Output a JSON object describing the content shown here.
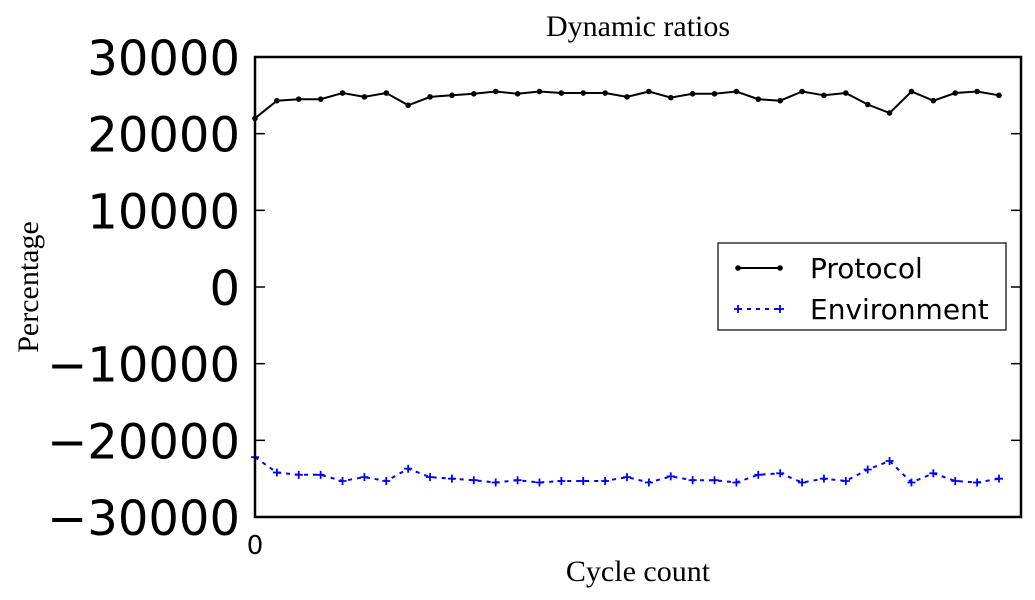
{
  "chart_data": {
    "type": "line",
    "title": "Dynamic ratios",
    "xlabel": "Cycle count",
    "ylabel": "Percentage",
    "ylim": [
      -30000,
      30000
    ],
    "yticks": [
      -30000,
      -20000,
      -10000,
      0,
      10000,
      20000,
      30000
    ],
    "xticks": [
      0
    ],
    "xlim": [
      0,
      34
    ],
    "grid": false,
    "legend_position": "center-right",
    "series": [
      {
        "name": "Protocol",
        "color": "#000000",
        "linestyle": "solid",
        "marker": "dot",
        "x": [
          0,
          1,
          2,
          3,
          4,
          5,
          6,
          7,
          8,
          9,
          10,
          11,
          12,
          13,
          14,
          15,
          16,
          17,
          18,
          19,
          20,
          21,
          22,
          23,
          24,
          25,
          26,
          27,
          28,
          29,
          30,
          31,
          32,
          33,
          34
        ],
        "values": [
          22000,
          24300,
          24500,
          24500,
          25300,
          24800,
          25300,
          23700,
          24800,
          25000,
          25200,
          25500,
          25200,
          25500,
          25300,
          25300,
          25300,
          24800,
          25500,
          24700,
          25200,
          25200,
          25500,
          24500,
          24300,
          25500,
          25000,
          25300,
          23800,
          22700,
          25500,
          24300,
          25300,
          25500,
          25000
        ]
      },
      {
        "name": "Environment",
        "color": "#0000ff",
        "linestyle": "dashed",
        "marker": "plus",
        "x": [
          0,
          1,
          2,
          3,
          4,
          5,
          6,
          7,
          8,
          9,
          10,
          11,
          12,
          13,
          14,
          15,
          16,
          17,
          18,
          19,
          20,
          21,
          22,
          23,
          24,
          25,
          26,
          27,
          28,
          29,
          30,
          31,
          32,
          33,
          34
        ],
        "values": [
          -22200,
          -24200,
          -24500,
          -24500,
          -25300,
          -24800,
          -25300,
          -23700,
          -24800,
          -25000,
          -25200,
          -25500,
          -25200,
          -25500,
          -25300,
          -25300,
          -25300,
          -24800,
          -25500,
          -24700,
          -25200,
          -25200,
          -25500,
          -24500,
          -24300,
          -25500,
          -25000,
          -25300,
          -23800,
          -22700,
          -25500,
          -24300,
          -25300,
          -25500,
          -25000
        ]
      }
    ]
  }
}
